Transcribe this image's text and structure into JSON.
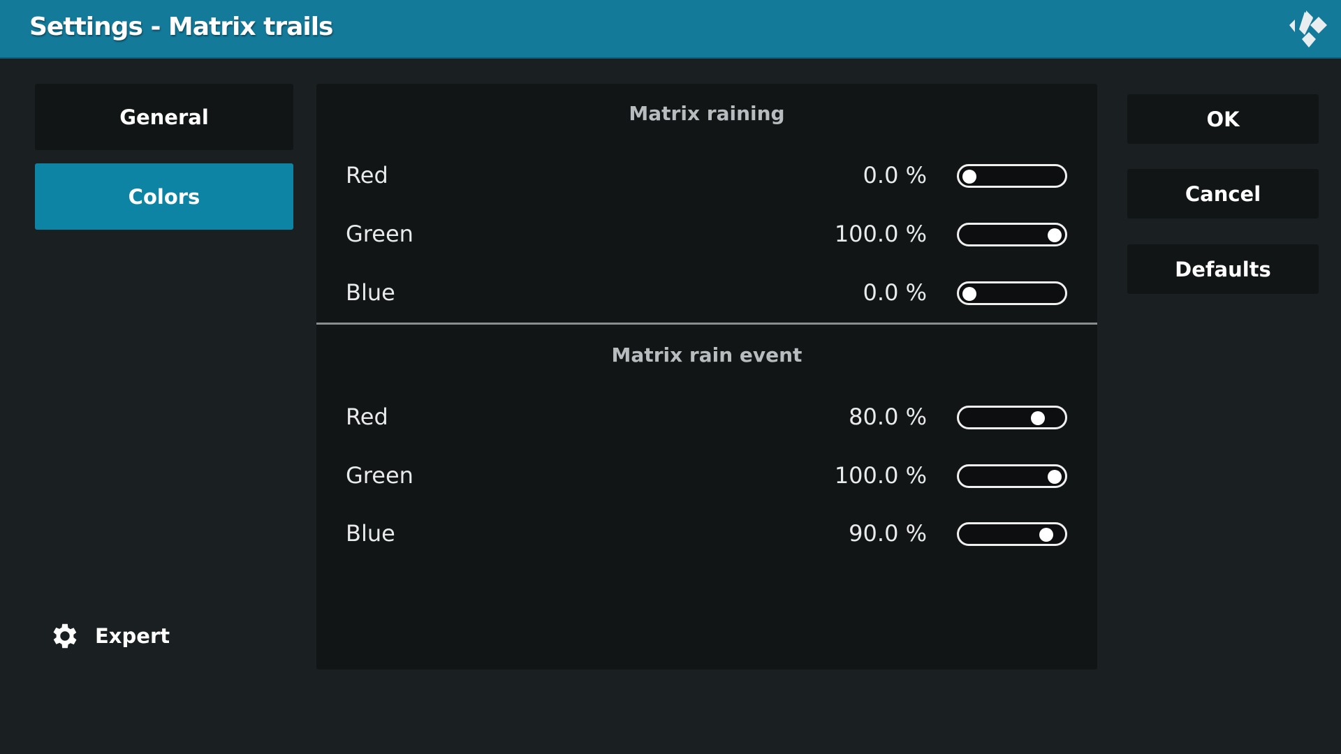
{
  "header": {
    "title": "Settings - Matrix trails",
    "logo_icon": "kodi-logo"
  },
  "categories": [
    {
      "label": "General",
      "active": false
    },
    {
      "label": "Colors",
      "active": true
    }
  ],
  "expert": {
    "label": "Expert",
    "icon": "gear-icon"
  },
  "sections": [
    {
      "title": "Matrix raining",
      "rows": [
        {
          "label": "Red",
          "value": "0.0 %",
          "fraction": 0.0
        },
        {
          "label": "Green",
          "value": "100.0 %",
          "fraction": 1.0
        },
        {
          "label": "Blue",
          "value": "0.0 %",
          "fraction": 0.0
        }
      ]
    },
    {
      "title": "Matrix rain event",
      "rows": [
        {
          "label": "Red",
          "value": "80.0 %",
          "fraction": 0.8
        },
        {
          "label": "Green",
          "value": "100.0 %",
          "fraction": 1.0
        },
        {
          "label": "Blue",
          "value": "90.0 %",
          "fraction": 0.9
        }
      ]
    }
  ],
  "buttons": {
    "ok": "OK",
    "cancel": "Cancel",
    "defaults": "Defaults"
  },
  "colors": {
    "header": "#147a9a",
    "accent": "#0e84a5",
    "background": "#1a1f22",
    "panel": "#121516"
  }
}
